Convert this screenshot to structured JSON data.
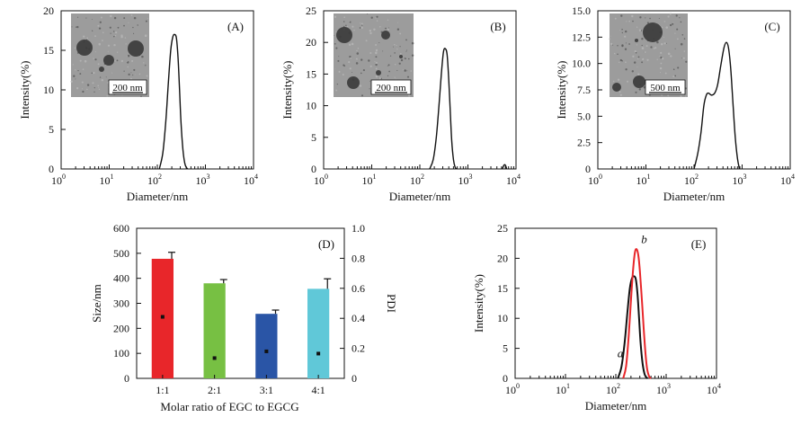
{
  "chart_data": [
    {
      "panel": "A",
      "type": "line",
      "xlabel": "Diameter/nm",
      "ylabel": "Intensity(%)",
      "x_scale": "log",
      "xlim_exp": [
        0,
        4
      ],
      "x_ticks": [
        {
          "base": "10",
          "exp": "0"
        },
        {
          "base": "10",
          "exp": "1"
        },
        {
          "base": "10",
          "exp": "2"
        },
        {
          "base": "10",
          "exp": "3"
        },
        {
          "base": "10",
          "exp": "4"
        }
      ],
      "ylim": [
        0,
        20
      ],
      "y_ticks": [
        "0",
        "5",
        "10",
        "15",
        "20"
      ],
      "series": [
        {
          "name": "distribution",
          "color": "#111111",
          "x": [
            110,
            130,
            150,
            170,
            190,
            210,
            230,
            250,
            270,
            290,
            310,
            340,
            370,
            400,
            430
          ],
          "y": [
            0,
            2,
            6,
            11,
            15,
            16.7,
            17,
            16.5,
            14,
            10,
            6,
            2.5,
            0.8,
            0.2,
            0
          ]
        }
      ],
      "inset": {
        "scale_label": "200 nm"
      }
    },
    {
      "panel": "B",
      "type": "line",
      "xlabel": "Diameter/nm",
      "ylabel": "Intensity(%)",
      "x_scale": "log",
      "xlim_exp": [
        0,
        4
      ],
      "x_ticks": [
        {
          "base": "10",
          "exp": "0"
        },
        {
          "base": "10",
          "exp": "1"
        },
        {
          "base": "10",
          "exp": "2"
        },
        {
          "base": "10",
          "exp": "3"
        },
        {
          "base": "10",
          "exp": "4"
        }
      ],
      "ylim": [
        0,
        25
      ],
      "y_ticks": [
        "0",
        "5",
        "10",
        "15",
        "20",
        "25"
      ],
      "series": [
        {
          "name": "distribution",
          "color": "#111111",
          "x": [
            160,
            190,
            220,
            250,
            280,
            310,
            340,
            370,
            400,
            430,
            460,
            500,
            540,
            580
          ],
          "y": [
            0,
            1.5,
            5,
            10,
            15,
            18.5,
            19,
            18,
            14,
            9,
            4.5,
            1.5,
            0.3,
            0
          ]
        },
        {
          "name": "minor peak",
          "color": "#111111",
          "x": [
            5200,
            5600,
            6000,
            6400
          ],
          "y": [
            0,
            0.6,
            0.6,
            0
          ]
        }
      ],
      "inset": {
        "scale_label": "200 nm"
      }
    },
    {
      "panel": "C",
      "type": "line",
      "xlabel": "Diameter/nm",
      "ylabel": "Intensity(%)",
      "x_scale": "log",
      "xlim_exp": [
        0,
        4
      ],
      "x_ticks": [
        {
          "base": "10",
          "exp": "0"
        },
        {
          "base": "10",
          "exp": "1"
        },
        {
          "base": "10",
          "exp": "2"
        },
        {
          "base": "10",
          "exp": "3"
        },
        {
          "base": "10",
          "exp": "4"
        }
      ],
      "ylim": [
        0,
        15
      ],
      "y_ticks": [
        "0",
        "2.5",
        "5.0",
        "7.5",
        "10.0",
        "12.5",
        "15.0"
      ],
      "series": [
        {
          "name": "distribution",
          "color": "#111111",
          "x": [
            100,
            120,
            140,
            160,
            180,
            200,
            230,
            270,
            310,
            360,
            420,
            470,
            520,
            580,
            650,
            720,
            800,
            880
          ],
          "y": [
            0,
            1.5,
            3.5,
            6,
            7,
            7.2,
            7,
            7.2,
            8,
            9.8,
            11.5,
            12,
            11.5,
            9.5,
            6,
            3,
            1,
            0
          ]
        }
      ],
      "inset": {
        "scale_label": "500 nm"
      }
    },
    {
      "panel": "D",
      "type": "bar",
      "categories": [
        "1:1",
        "2:1",
        "3:1",
        "4:1"
      ],
      "xlabel": "Molar ratio of EGC to EGCG",
      "ylabel": "Size/nm",
      "ylabel_right": "PDI",
      "ylim": [
        0,
        600
      ],
      "y_ticks": [
        "0",
        "100",
        "200",
        "300",
        "400",
        "500",
        "600"
      ],
      "ylim_right": [
        0,
        1.0
      ],
      "y_ticks_right": [
        "0",
        "0.2",
        "0.4",
        "0.6",
        "0.8",
        "1.0"
      ],
      "series": [
        {
          "name": "Size",
          "values": [
            478,
            380,
            258,
            358
          ],
          "errors": [
            26,
            15,
            15,
            40
          ],
          "colors": [
            "#e8262a",
            "#77c043",
            "#2a55a6",
            "#60c8d8"
          ]
        },
        {
          "name": "PDI",
          "axis": "right",
          "values": [
            0.41,
            0.135,
            0.18,
            0.165
          ],
          "color": "#111111"
        }
      ]
    },
    {
      "panel": "E",
      "type": "line",
      "xlabel": "Diameter/nm",
      "ylabel": "Intensity(%)",
      "x_scale": "log",
      "xlim_exp": [
        0,
        4
      ],
      "x_ticks": [
        {
          "base": "10",
          "exp": "0"
        },
        {
          "base": "10",
          "exp": "1"
        },
        {
          "base": "10",
          "exp": "2"
        },
        {
          "base": "10",
          "exp": "3"
        },
        {
          "base": "10",
          "exp": "4"
        }
      ],
      "ylim": [
        0,
        25
      ],
      "y_ticks": [
        "0",
        "5",
        "10",
        "15",
        "20",
        "25"
      ],
      "series": [
        {
          "name": "a",
          "color": "#111111",
          "x": [
            110,
            130,
            150,
            170,
            190,
            210,
            230,
            250,
            270,
            290,
            310,
            340,
            370,
            400,
            430
          ],
          "y": [
            0,
            2,
            6,
            11,
            15,
            16.7,
            17,
            16.5,
            14,
            10,
            6,
            2.5,
            0.8,
            0.2,
            0
          ]
        },
        {
          "name": "b",
          "color": "#e8262a",
          "x": [
            140,
            160,
            180,
            200,
            220,
            240,
            260,
            280,
            300,
            330,
            360,
            390,
            420,
            460,
            500
          ],
          "y": [
            0,
            2,
            7,
            13,
            18,
            21,
            21.5,
            20.5,
            18,
            13,
            8,
            4,
            1.5,
            0.3,
            0
          ]
        }
      ]
    }
  ]
}
